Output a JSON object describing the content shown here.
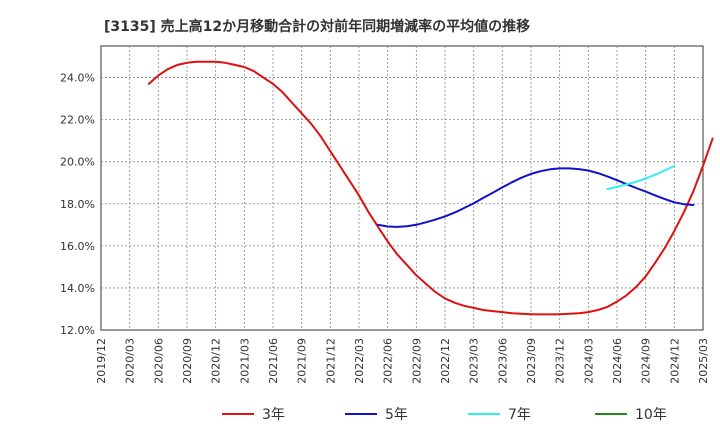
{
  "chart_data": {
    "type": "line",
    "title": "[3135]  売上高12か月移動合計の対前年同期増減率の平均値の推移",
    "xlabel": "",
    "ylabel": "",
    "ylim": [
      12.0,
      25.5
    ],
    "grid": true,
    "legend_position": "bottom",
    "y_ticks": [
      "12.0%",
      "14.0%",
      "16.0%",
      "18.0%",
      "20.0%",
      "22.0%",
      "24.0%"
    ],
    "y_tick_values": [
      12,
      14,
      16,
      18,
      20,
      22,
      24
    ],
    "x_ticks": [
      "2019/12",
      "2020/03",
      "2020/06",
      "2020/09",
      "2020/12",
      "2021/03",
      "2021/06",
      "2021/09",
      "2021/12",
      "2022/03",
      "2022/06",
      "2022/09",
      "2022/12",
      "2023/03",
      "2023/06",
      "2023/09",
      "2023/12",
      "2024/03",
      "2024/06",
      "2024/09",
      "2024/12",
      "2025/03"
    ],
    "series": [
      {
        "name": "3年",
        "color": "#dd1111",
        "start": "2020/05",
        "values": [
          23.7,
          24.1,
          24.4,
          24.6,
          24.7,
          24.75,
          24.75,
          24.75,
          24.7,
          24.6,
          24.5,
          24.3,
          24.0,
          23.7,
          23.3,
          22.8,
          22.3,
          21.8,
          21.2,
          20.5,
          19.8,
          19.1,
          18.4,
          17.6,
          16.9,
          16.2,
          15.6,
          15.1,
          14.6,
          14.2,
          13.8,
          13.5,
          13.3,
          13.15,
          13.05,
          12.95,
          12.9,
          12.85,
          12.8,
          12.77,
          12.75,
          12.74,
          12.74,
          12.75,
          12.77,
          12.8,
          12.85,
          12.95,
          13.1,
          13.35,
          13.65,
          14.05,
          14.55,
          15.2,
          15.9,
          16.7,
          17.6,
          18.6,
          19.8,
          21.1
        ]
      },
      {
        "name": "5年",
        "color": "#1111cc",
        "start": "2022/05",
        "values": [
          17.0,
          16.92,
          16.9,
          16.93,
          17.0,
          17.12,
          17.25,
          17.4,
          17.58,
          17.8,
          18.02,
          18.28,
          18.52,
          18.78,
          19.02,
          19.24,
          19.42,
          19.55,
          19.64,
          19.68,
          19.68,
          19.65,
          19.58,
          19.46,
          19.3,
          19.12,
          18.93,
          18.75,
          18.58,
          18.4,
          18.22,
          18.07,
          17.98,
          17.94
        ]
      },
      {
        "name": "7年",
        "color": "#33eeee",
        "start": "2024/05",
        "values": [
          18.7,
          18.8,
          18.92,
          19.05,
          19.2,
          19.38,
          19.58,
          19.8
        ]
      },
      {
        "name": "10年",
        "color": "#228822",
        "start": "2024/12",
        "values": []
      }
    ]
  }
}
